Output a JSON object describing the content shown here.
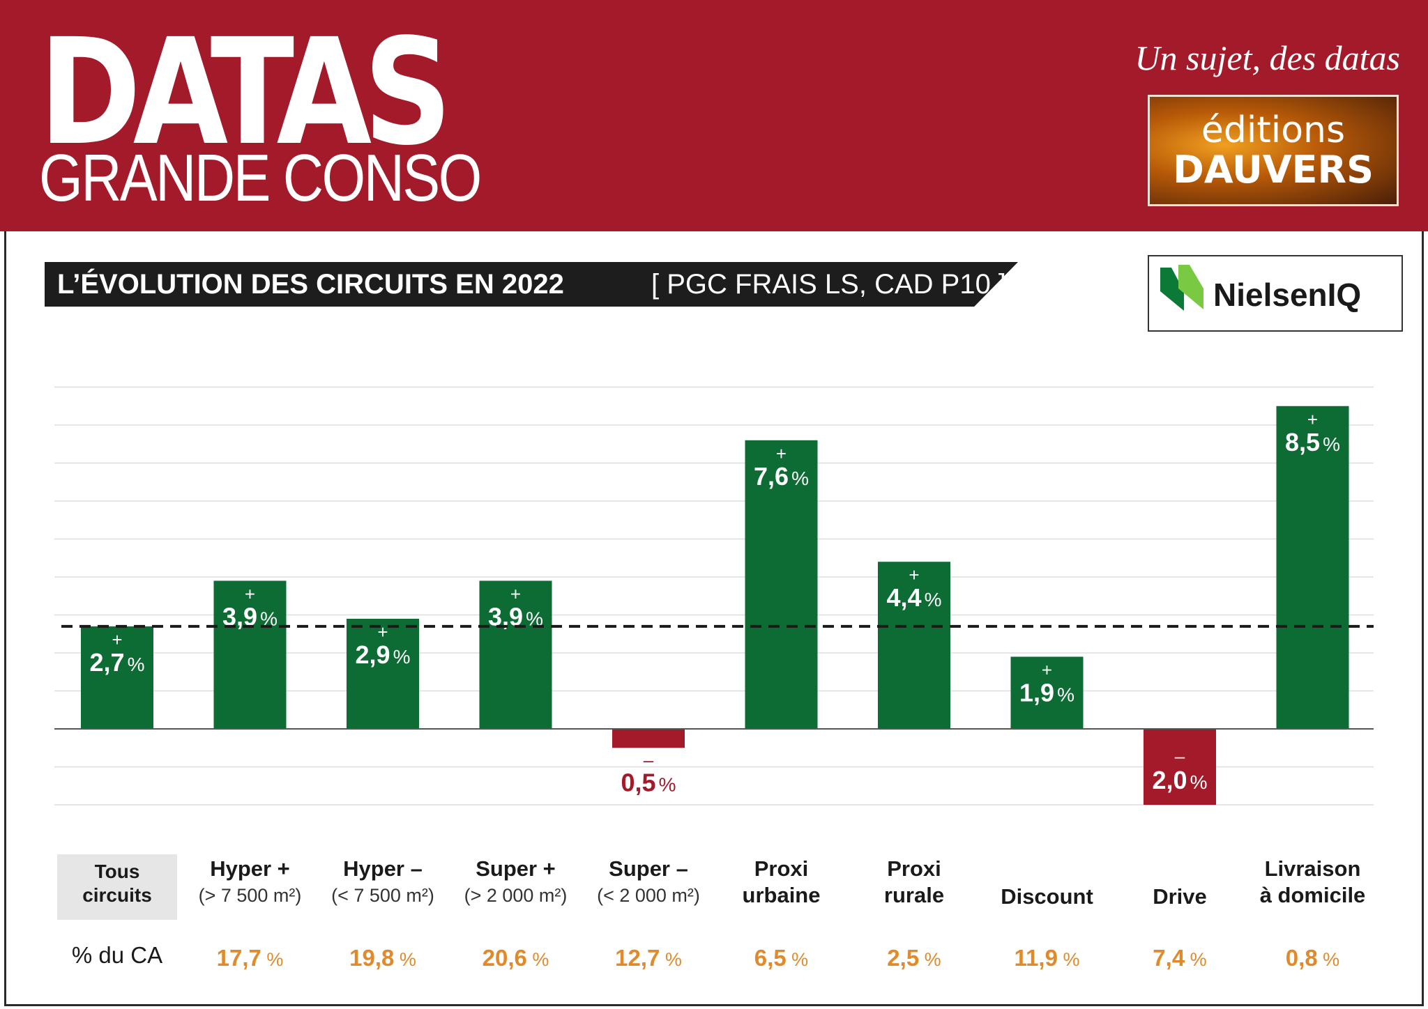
{
  "header": {
    "brand_title": "DATAS",
    "brand_subtitle": "GRANDE CONSO",
    "tagline": "Un sujet, des datas",
    "publisher_line1": "éditions",
    "publisher_line2": "DAUVERS",
    "background_color": "#a31a2b"
  },
  "title_bar": {
    "title": "L’ÉVOLUTION DES CIRCUITS EN 2022",
    "subtitle": "[ PGC FRAIS LS, CAD P10 ]"
  },
  "source_logo": {
    "icon": "nielseniq-logo-icon",
    "text": "NielsenIQ"
  },
  "chart_data": {
    "type": "bar",
    "title": "L’ÉVOLUTION DES CIRCUITS EN 2022",
    "subtitle": "[ PGC FRAIS LS, CAD P10 ]",
    "categories": [
      {
        "name": "Tous circuits",
        "lines": [
          "Tous",
          "circuits"
        ],
        "detail": ""
      },
      {
        "name": "Hyper +",
        "lines": [
          "Hyper +"
        ],
        "detail": "(> 7 500 m²)"
      },
      {
        "name": "Hyper –",
        "lines": [
          "Hyper –"
        ],
        "detail": "(< 7 500 m²)"
      },
      {
        "name": "Super +",
        "lines": [
          "Super +"
        ],
        "detail": "(> 2 000 m²)"
      },
      {
        "name": "Super –",
        "lines": [
          "Super –"
        ],
        "detail": "(< 2 000 m²)"
      },
      {
        "name": "Proxi urbaine",
        "lines": [
          "Proxi",
          "urbaine"
        ],
        "detail": ""
      },
      {
        "name": "Proxi rurale",
        "lines": [
          "Proxi",
          "rurale"
        ],
        "detail": ""
      },
      {
        "name": "Discount",
        "lines": [
          "Discount"
        ],
        "detail": ""
      },
      {
        "name": "Drive",
        "lines": [
          "Drive"
        ],
        "detail": ""
      },
      {
        "name": "Livraison à domicile",
        "lines": [
          "Livraison",
          "à domicile"
        ],
        "detail": ""
      }
    ],
    "values": [
      2.7,
      3.9,
      2.9,
      3.9,
      -0.5,
      7.6,
      4.4,
      1.9,
      -2.0,
      8.5
    ],
    "value_labels": [
      "2,7",
      "3,9",
      "2,9",
      "3,9",
      "0,5",
      "7,6",
      "4,4",
      "1,9",
      "2,0",
      "8,5"
    ],
    "sign_labels": [
      "+",
      "+",
      "+",
      "+",
      "–",
      "+",
      "+",
      "+",
      "–",
      "+"
    ],
    "unit": "%",
    "reference_line": 2.7,
    "ylim": [
      -2.0,
      9.0
    ],
    "gridline_step": 1,
    "grid": true,
    "colors": {
      "positive": "#0d6b34",
      "negative": "#a31a2b",
      "reference_line": "#1a1a1a",
      "grid": "#dddddd"
    },
    "share_label": "% du CA",
    "shares": [
      "",
      "17,7",
      "19,8",
      "20,6",
      "12,7",
      "6,5",
      "2,5",
      "11,9",
      "7,4",
      "0,8"
    ],
    "share_color": "#e08a2b"
  }
}
